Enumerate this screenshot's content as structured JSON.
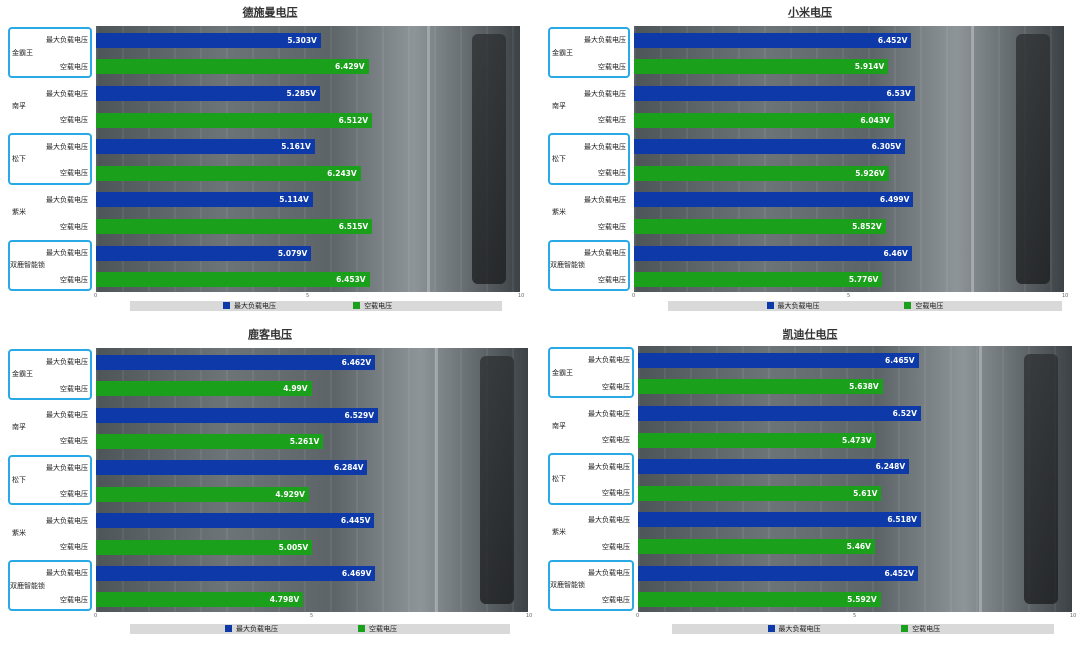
{
  "colors": {
    "max_load": "#0d3aa8",
    "no_load": "#1aa01a",
    "box": "#29a9e6"
  },
  "chart_data": [
    {
      "type": "bar",
      "title": "德施曼电压",
      "categories": [
        "金霸王",
        "南孚",
        "松下",
        "紫米",
        "双鹿智能锁"
      ],
      "series_labels": [
        "最大负载电压",
        "空载电压"
      ],
      "series": [
        {
          "name": "最大负载电压",
          "values": [
            5.303,
            5.285,
            5.161,
            5.114,
            5.079
          ],
          "labels": [
            "5.303V",
            "5.285V",
            "5.161V",
            "5.114V",
            "5.079V"
          ]
        },
        {
          "name": "空载电压",
          "values": [
            6.429,
            6.512,
            6.243,
            6.515,
            6.453
          ],
          "labels": [
            "6.429V",
            "6.512V",
            "6.243V",
            "6.515V",
            "6.453V"
          ]
        }
      ],
      "xlim": [
        0,
        10
      ],
      "x_ticks": [
        "0",
        "5",
        "10"
      ],
      "boxed": [
        true,
        false,
        true,
        false,
        true
      ],
      "legend": "bottom"
    },
    {
      "type": "bar",
      "title": "小米电压",
      "categories": [
        "金霸王",
        "南孚",
        "松下",
        "紫米",
        "双鹿智能锁"
      ],
      "series_labels": [
        "最大负载电压",
        "空载电压"
      ],
      "series": [
        {
          "name": "最大负载电压",
          "values": [
            6.452,
            6.53,
            6.305,
            6.499,
            6.46
          ],
          "labels": [
            "6.452V",
            "6.53V",
            "6.305V",
            "6.499V",
            "6.46V"
          ]
        },
        {
          "name": "空载电压",
          "values": [
            5.914,
            6.043,
            5.926,
            5.852,
            5.776
          ],
          "labels": [
            "5.914V",
            "6.043V",
            "5.926V",
            "5.852V",
            "5.776V"
          ]
        }
      ],
      "xlim": [
        0,
        10
      ],
      "x_ticks": [
        "0",
        "5",
        "10"
      ],
      "boxed": [
        true,
        false,
        true,
        false,
        true
      ],
      "legend": "bottom"
    },
    {
      "type": "bar",
      "title": "鹿客电压",
      "categories": [
        "金霸王",
        "南孚",
        "松下",
        "紫米",
        "双鹿智能锁"
      ],
      "series_labels": [
        "最大负载电压",
        "空载电压"
      ],
      "series": [
        {
          "name": "最大负载电压",
          "values": [
            6.462,
            6.529,
            6.284,
            6.445,
            6.469
          ],
          "labels": [
            "6.462V",
            "6.529V",
            "6.284V",
            "6.445V",
            "6.469V"
          ]
        },
        {
          "name": "空载电压",
          "values": [
            4.99,
            5.261,
            4.929,
            5.005,
            4.798
          ],
          "labels": [
            "4.99V",
            "5.261V",
            "4.929V",
            "5.005V",
            "4.798V"
          ]
        }
      ],
      "xlim": [
        0,
        10
      ],
      "x_ticks": [
        "0",
        "5",
        "10"
      ],
      "boxed": [
        true,
        false,
        true,
        false,
        true
      ],
      "legend": "bottom"
    },
    {
      "type": "bar",
      "title": "凯迪仕电压",
      "categories": [
        "金霸王",
        "南孚",
        "松下",
        "紫米",
        "双鹿智能锁"
      ],
      "series_labels": [
        "最大负载电压",
        "空载电压"
      ],
      "series": [
        {
          "name": "最大负载电压",
          "values": [
            6.465,
            6.52,
            6.248,
            6.518,
            6.452
          ],
          "labels": [
            "6.465V",
            "6.52V",
            "6.248V",
            "6.518V",
            "6.452V"
          ]
        },
        {
          "name": "空载电压",
          "values": [
            5.638,
            5.473,
            5.61,
            5.46,
            5.592
          ],
          "labels": [
            "5.638V",
            "5.473V",
            "5.61V",
            "5.46V",
            "5.592V"
          ]
        }
      ],
      "xlim": [
        0,
        10
      ],
      "x_ticks": [
        "0",
        "5",
        "10"
      ],
      "boxed": [
        true,
        false,
        true,
        false,
        true
      ],
      "legend": "bottom"
    }
  ]
}
